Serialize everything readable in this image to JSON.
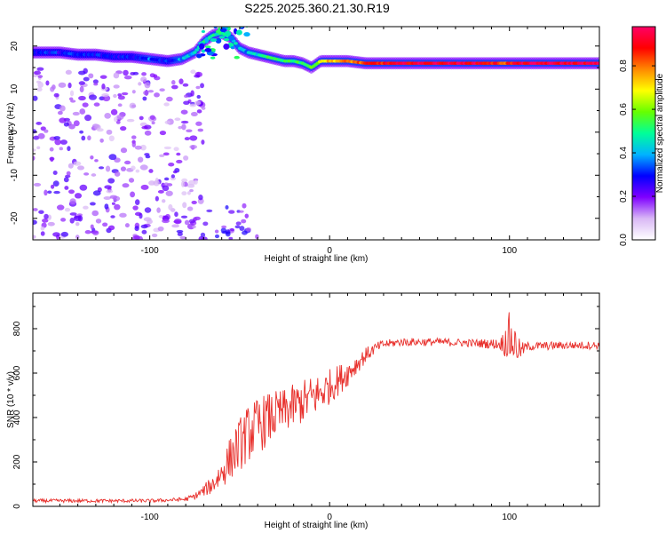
{
  "title": "S225.2025.360.21.30.R19",
  "colors": {
    "background": "#ffffff",
    "axes": "#000000",
    "snr_line": "#e8302c"
  },
  "colormap": [
    "#ffffff",
    "#d9b8f5",
    "#7f00ff",
    "#0000ff",
    "#00b3ff",
    "#00ff99",
    "#66ff00",
    "#ffff00",
    "#ff8800",
    "#ff0000",
    "#ff0066"
  ],
  "colorbar": {
    "label": "Normalized spectral amplitude",
    "ticks": [
      "0.0",
      "0.2",
      "0.4",
      "0.6",
      "0.8"
    ],
    "tick_values": [
      0.0,
      0.2,
      0.4,
      0.6,
      0.8
    ],
    "range": [
      0.0,
      0.98
    ]
  },
  "chart_data": [
    {
      "type": "heatmap",
      "xlabel": "Height of straight line (km)",
      "ylabel": "Frequency (Hz)",
      "xlim": [
        -165,
        150
      ],
      "ylim": [
        -25,
        24.5
      ],
      "xticks": [
        "-100",
        "0",
        "100"
      ],
      "xtick_values": [
        -100,
        0,
        100
      ],
      "yticks": [
        "-20",
        "-10",
        "0",
        "10",
        "20"
      ],
      "ytick_values": [
        -20,
        -10,
        0,
        10,
        20
      ],
      "ridge": {
        "x": [
          -165,
          -150,
          -140,
          -130,
          -120,
          -110,
          -100,
          -90,
          -82,
          -75,
          -70,
          -65,
          -60,
          -55,
          -50,
          -45,
          -40,
          -35,
          -30,
          -25,
          -20,
          -15,
          -10,
          -5,
          0,
          10,
          20,
          30,
          50,
          80,
          98,
          100,
          102,
          110,
          130,
          150
        ],
        "freq": [
          18.5,
          18.5,
          18.0,
          18.0,
          17.5,
          17.5,
          17.0,
          16.5,
          17.0,
          18.5,
          21.0,
          22.5,
          23.0,
          22.0,
          19.5,
          18.5,
          18.0,
          17.5,
          17.0,
          16.5,
          16.5,
          16.0,
          15.0,
          16.5,
          16.5,
          16.5,
          16.0,
          16.0,
          16.0,
          16.0,
          16.0,
          16.0,
          16.0,
          16.0,
          16.0,
          16.0
        ],
        "amplitude": [
          0.3,
          0.3,
          0.3,
          0.3,
          0.3,
          0.3,
          0.35,
          0.3,
          0.4,
          0.45,
          0.5,
          0.5,
          0.5,
          0.45,
          0.4,
          0.4,
          0.45,
          0.5,
          0.55,
          0.55,
          0.55,
          0.55,
          0.55,
          0.7,
          0.75,
          0.8,
          0.85,
          0.9,
          0.95,
          0.95,
          0.85,
          0.9,
          0.9,
          0.95,
          0.95,
          0.95
        ]
      }
    },
    {
      "type": "line",
      "xlabel": "Height of straight line (km)",
      "ylabel": "SNR (10 * v/v)",
      "xlim": [
        -165,
        150
      ],
      "ylim": [
        0,
        960
      ],
      "xticks": [
        "-100",
        "0",
        "100"
      ],
      "xtick_values": [
        -100,
        0,
        100
      ],
      "yticks": [
        "0",
        "200",
        "400",
        "600",
        "800"
      ],
      "ytick_values": [
        0,
        200,
        400,
        600,
        800
      ],
      "series": [
        {
          "x": [
            -165,
            -140,
            -120,
            -100,
            -90,
            -80,
            -75,
            -70,
            -65,
            -60,
            -55,
            -50,
            -45,
            -40,
            -35,
            -30,
            -25,
            -20,
            -15,
            -10,
            -5,
            0,
            5,
            10,
            15,
            20,
            25,
            30,
            40,
            60,
            80,
            95,
            100,
            103,
            106,
            110,
            130,
            150
          ],
          "y": [
            25,
            25,
            25,
            25,
            28,
            32,
            45,
            70,
            100,
            150,
            220,
            280,
            330,
            360,
            390,
            410,
            430,
            450,
            470,
            490,
            510,
            540,
            570,
            600,
            640,
            680,
            710,
            730,
            740,
            740,
            735,
            730,
            760,
            730,
            700,
            720,
            725,
            725
          ],
          "noise": [
            8,
            8,
            8,
            8,
            8,
            10,
            15,
            25,
            45,
            70,
            100,
            120,
            130,
            130,
            120,
            110,
            100,
            100,
            100,
            100,
            90,
            80,
            70,
            60,
            45,
            35,
            25,
            20,
            18,
            18,
            18,
            25,
            120,
            90,
            40,
            20,
            18,
            18
          ]
        }
      ]
    }
  ]
}
